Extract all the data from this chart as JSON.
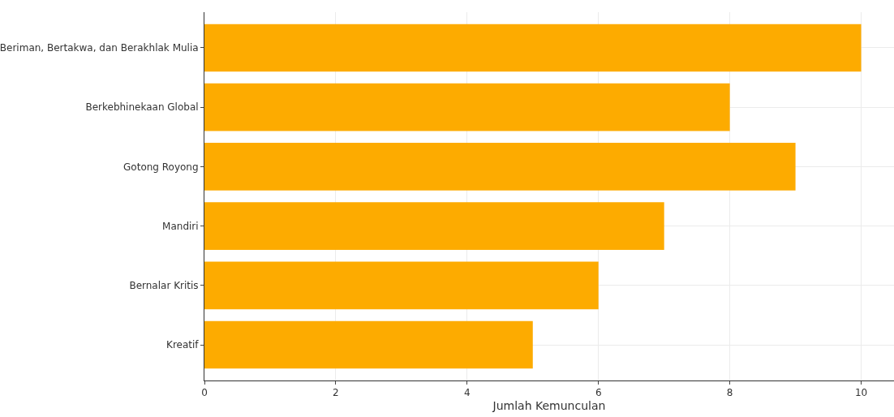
{
  "chart_data": {
    "type": "bar",
    "orientation": "horizontal",
    "xlabel": "Jumlah Kemunculan",
    "categories": [
      "Beriman, Bertakwa, dan Berakhlak Mulia",
      "Berkebhinekaan Global",
      "Gotong Royong",
      "Mandiri",
      "Bernalar Kritis",
      "Kreatif"
    ],
    "values": [
      10,
      8,
      9,
      7,
      6,
      5
    ],
    "color": "#fdab00",
    "xlim": [
      0,
      10.5
    ],
    "xticks": [
      0,
      2,
      4,
      6,
      8,
      10
    ],
    "grid": true
  }
}
